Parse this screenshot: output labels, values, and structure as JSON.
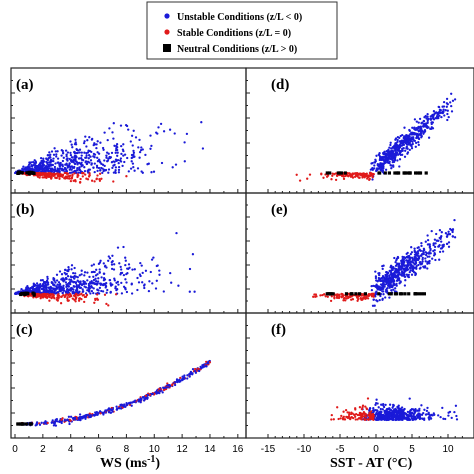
{
  "colors": {
    "unstable": "#1a1ad8",
    "stable": "#e01a1a",
    "neutral": "#000000",
    "frame": "#222222"
  },
  "legend": {
    "entries": [
      {
        "key": "unstable",
        "label": "Unstable Conditions (z/L < 0)",
        "marker": "circle"
      },
      {
        "key": "stable",
        "label": "Stable Conditions (z/L = 0)",
        "marker": "circle"
      },
      {
        "key": "neutral",
        "label": "Neutral Conditions (z/L > 0)",
        "marker": "square"
      }
    ]
  },
  "axes": {
    "left_xlabel": "WS (ms-1)",
    "left_xlabel_main": "WS (ms",
    "left_xlabel_sup": "-1",
    "left_xlabel_close": ")",
    "right_xlabel": "SST - AT (°C)",
    "left_xticks": [
      "0",
      "2",
      "4",
      "6",
      "8",
      "10",
      "12",
      "14",
      "16"
    ],
    "right_xticks": [
      "-15",
      "-10",
      "-5",
      "0",
      "5",
      "10"
    ]
  },
  "chart_data": [
    {
      "type": "scatter",
      "panel": "(a)",
      "x": "WS",
      "xlim": [
        0,
        17
      ],
      "description_clusters": {
        "neutral": {
          "x_range": [
            0.2,
            1.5
          ],
          "y": "baseline"
        },
        "stable": {
          "x_range": [
            0.5,
            7.5
          ],
          "y_range": "baseline to slightly below"
        },
        "unstable": {
          "x_range": [
            0.5,
            15
          ],
          "trend": "spread increasing with WS"
        }
      }
    },
    {
      "type": "scatter",
      "panel": "(b)",
      "x": "WS",
      "xlim": [
        0,
        17
      ]
    },
    {
      "type": "scatter",
      "panel": "(c)",
      "x": "WS",
      "xlim": [
        0,
        17
      ],
      "trend": "monotonic curve increasing with WS, max near WS=14"
    },
    {
      "type": "scatter",
      "panel": "(d)",
      "x": "SST - AT",
      "xlim": [
        -17,
        13
      ],
      "trend": "linear increase for SST-AT > 0"
    },
    {
      "type": "scatter",
      "panel": "(e)",
      "x": "SST - AT",
      "xlim": [
        -17,
        13
      ]
    },
    {
      "type": "scatter",
      "panel": "(f)",
      "x": "SST - AT",
      "xlim": [
        -17,
        13
      ]
    }
  ],
  "panels": {
    "a": "(a)",
    "b": "(b)",
    "c": "(c)",
    "d": "(d)",
    "e": "(e)",
    "f": "(f)"
  }
}
